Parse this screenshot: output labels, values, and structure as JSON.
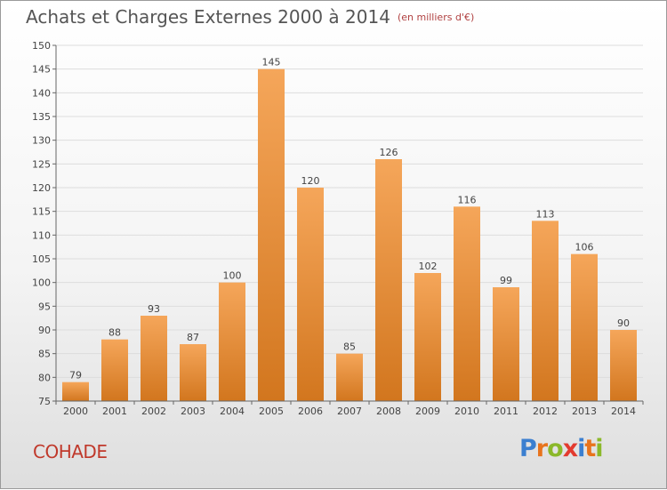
{
  "header": {
    "title": "Achats et Charges Externes 2000 à 2014",
    "subtitle": "(en milliers d'€)"
  },
  "footer": {
    "commune": "COHADE",
    "logo_letters": [
      "P",
      "r",
      "o",
      "x",
      "i",
      "t",
      "i"
    ],
    "logo_colors": [
      "#3b7fd0",
      "#e8731c",
      "#8bb82a",
      "#e33b2f",
      "#3b7fd0",
      "#e8731c",
      "#8bb82a"
    ]
  },
  "colors": {
    "bar_top": "#f5a65a",
    "bar_bottom": "#d2761e",
    "axis": "#666666",
    "grid": "#dddddd"
  },
  "chart_data": {
    "type": "bar",
    "title": "Achats et Charges Externes 2000 à 2014",
    "subtitle": "(en milliers d'€)",
    "categories": [
      "2000",
      "2001",
      "2002",
      "2003",
      "2004",
      "2005",
      "2006",
      "2007",
      "2008",
      "2009",
      "2010",
      "2011",
      "2012",
      "2013",
      "2014"
    ],
    "values": [
      79,
      88,
      93,
      87,
      100,
      145,
      120,
      85,
      126,
      102,
      116,
      99,
      113,
      106,
      90
    ],
    "ylim": [
      75,
      150
    ],
    "yticks": [
      75,
      80,
      85,
      90,
      95,
      100,
      105,
      110,
      115,
      120,
      125,
      130,
      135,
      140,
      145,
      150
    ],
    "xlabel": "",
    "ylabel": "",
    "grid": true,
    "data_labels": true
  }
}
